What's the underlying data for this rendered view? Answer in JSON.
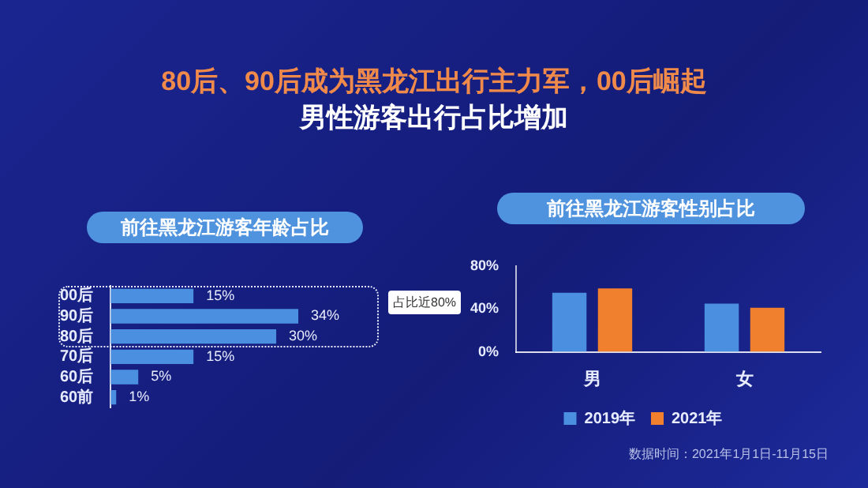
{
  "chart_data": [
    {
      "type": "bar",
      "orientation": "horizontal",
      "title": "前往黑龙江游客年龄占比",
      "annotations": [
        "80后、90后成为黑龙江出行主力军，00后崛起",
        "男性游客出行占比增加",
        "占比近80%"
      ],
      "categories": [
        "00后",
        "90后",
        "80后",
        "70后",
        "60后",
        "60前"
      ],
      "values": [
        15,
        34,
        30,
        15,
        5,
        1
      ],
      "value_labels": [
        "15%",
        "34%",
        "30%",
        "15%",
        "5%",
        "1%"
      ],
      "color": "#4a8fe0",
      "tick_labels": "y",
      "grid": false,
      "legend": false
    },
    {
      "type": "bar",
      "title": "前往黑龙江游客性别占比",
      "annotations": [
        "数据时间：2021年1月1日-11月15日"
      ],
      "categories": [
        "男",
        "女"
      ],
      "series": [
        {
          "name": "2019年",
          "color": "#4a8fe0",
          "values": [
            55,
            45
          ]
        },
        {
          "name": "2021年",
          "color": "#f07f2e",
          "values": [
            59,
            41
          ]
        }
      ],
      "ylim": [
        0,
        80
      ],
      "yticks": [
        {
          "value": 0,
          "label": "0%"
        },
        {
          "value": 40,
          "label": "40%"
        },
        {
          "value": 80,
          "label": "80%"
        }
      ],
      "grid": false,
      "legend": "bottom"
    }
  ]
}
